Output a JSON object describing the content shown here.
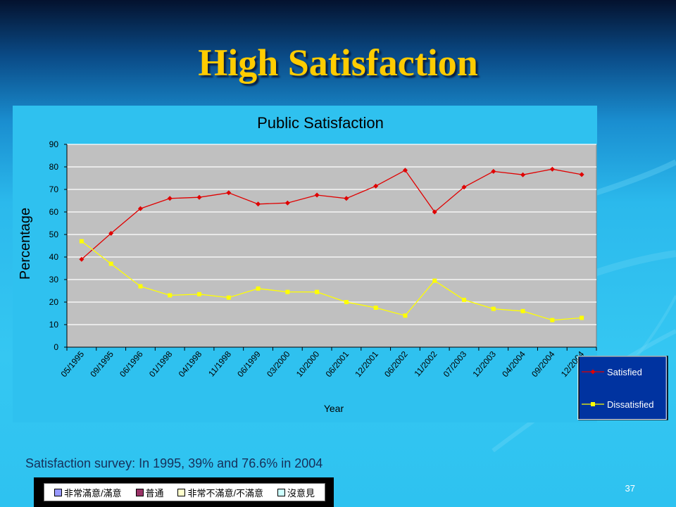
{
  "slide": {
    "title": "High Satisfaction",
    "caption": "Satisfaction survey: In 1995, 39%  and 76.6% in 2004",
    "page_number": "37"
  },
  "legend_strip": {
    "items": [
      {
        "label": "非常滿意/滿意",
        "color": "#9999ff"
      },
      {
        "label": "普通",
        "color": "#993366"
      },
      {
        "label": "非常不滿意/不滿意",
        "color": "#ffffcc"
      },
      {
        "label": "沒意見",
        "color": "#ccffff"
      }
    ]
  },
  "chart_data": {
    "type": "line",
    "title": "Public Satisfaction",
    "xlabel": "Year",
    "ylabel": "Percentage",
    "ylim": [
      0,
      90
    ],
    "yticks": [
      0,
      10,
      20,
      30,
      40,
      50,
      60,
      70,
      80,
      90
    ],
    "grid": true,
    "legend_position": "right",
    "plot_background": "#c0c0c0",
    "x_tick_labels": [
      "05/1995",
      "09/1995",
      "06/1996",
      "01/1998",
      "04/1998",
      "11/1998",
      "06/1999",
      "03/2000",
      "10/2000",
      "06/2001",
      "12/2001",
      "06/2002",
      "11/2002",
      "07/2003",
      "12/2003",
      "04/2004",
      "09/2004",
      "12/2004"
    ],
    "series": [
      {
        "name": "Satisfied",
        "color": "#e00000",
        "marker": "diamond",
        "values": [
          39,
          50.5,
          61.5,
          66,
          66.5,
          68.5,
          63.5,
          64,
          67.5,
          66,
          71.5,
          78.5,
          60,
          71,
          78,
          76.5,
          79,
          76.6
        ]
      },
      {
        "name": "Dissatisfied",
        "color": "#ffff00",
        "marker": "square",
        "values": [
          47,
          37,
          27,
          23,
          23.5,
          22,
          26,
          24.5,
          24.5,
          20,
          17.5,
          14,
          29.5,
          21,
          17,
          16,
          12,
          13
        ]
      }
    ]
  }
}
